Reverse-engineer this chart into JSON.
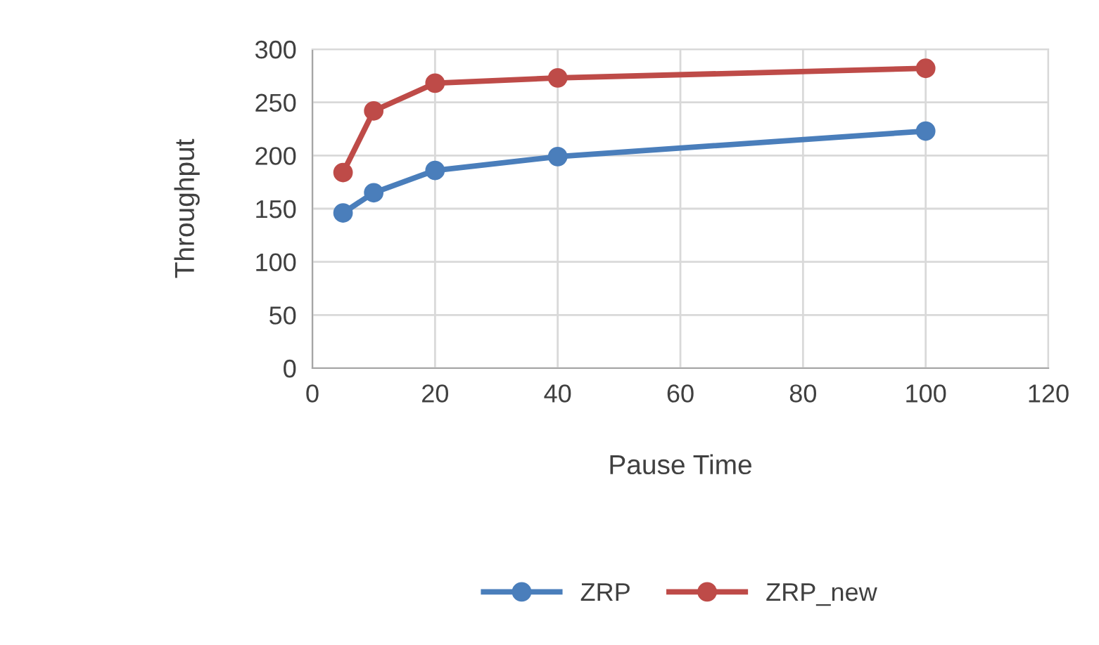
{
  "chart_data": {
    "type": "line",
    "xlabel": "Pause Time",
    "ylabel": "Throughput",
    "x": [
      5,
      10,
      20,
      40,
      100
    ],
    "series": [
      {
        "name": "ZRP",
        "color": "#4a7ebb",
        "values": [
          146,
          165,
          186,
          199,
          223
        ]
      },
      {
        "name": "ZRP_new",
        "color": "#be4b48",
        "values": [
          184,
          242,
          268,
          273,
          282
        ]
      }
    ],
    "xlim": [
      0,
      120
    ],
    "xticks": [
      0,
      20,
      40,
      60,
      80,
      100,
      120
    ],
    "ylim": [
      0,
      300
    ],
    "yticks": [
      0,
      50,
      100,
      150,
      200,
      250,
      300
    ],
    "grid": true,
    "legend": "bottom",
    "marker": "circle",
    "line_style": "solid"
  }
}
